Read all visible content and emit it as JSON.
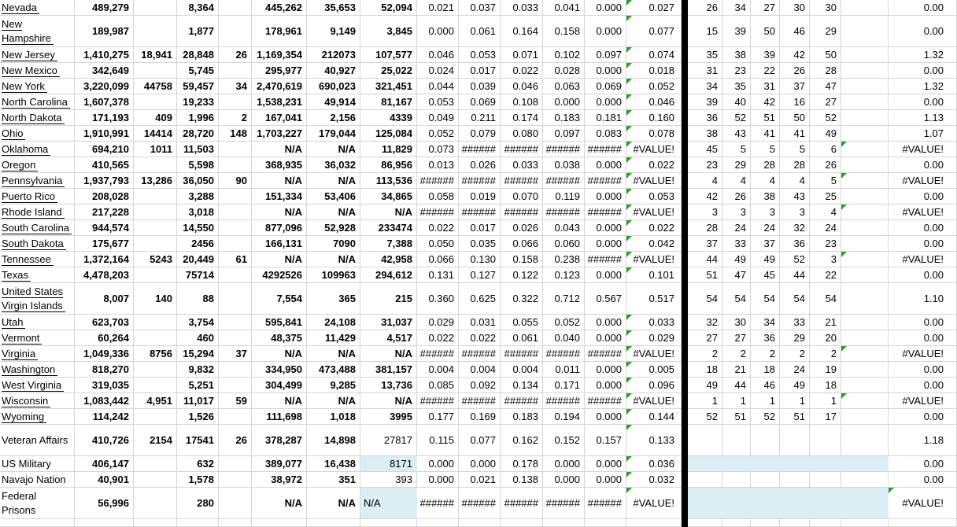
{
  "colors": {
    "gridline": "#d6d6d6",
    "error_indicator_green": "#2aa02a",
    "highlight_blue": "#daeef3",
    "section_divider_black": "#000000"
  },
  "table": {
    "rows": [
      {
        "label": "Nevada",
        "underline": true,
        "cells": [
          "489,279",
          "",
          "8,364",
          "",
          "445,262",
          "35,653",
          "52,094",
          "0.021",
          "0.037",
          "0.033",
          "0.041",
          "0.000",
          "0.027",
          "26",
          "34",
          "27",
          "30",
          "30",
          "0.00"
        ],
        "nTri": true
      },
      {
        "label": "New Hampshire",
        "underline": true,
        "tall": true,
        "cells": [
          "189,987",
          "",
          "1,877",
          "",
          "178,961",
          "9,149",
          "3,845",
          "0.000",
          "0.061",
          "0.164",
          "0.158",
          "0.000",
          "0.077",
          "15",
          "39",
          "50",
          "46",
          "29",
          "0.00"
        ],
        "nTri": true
      },
      {
        "label": "New Jersey",
        "underline": true,
        "cells": [
          "1,410,275",
          "18,941",
          "28,848",
          "26",
          "1,169,354",
          "212073",
          "107,577",
          "0.046",
          "0.053",
          "0.071",
          "0.102",
          "0.097",
          "0.074",
          "35",
          "38",
          "39",
          "42",
          "50",
          "1.32"
        ],
        "nTri": true
      },
      {
        "label": "New Mexico",
        "underline": true,
        "cells": [
          "342,649",
          "",
          "5,745",
          "",
          "295,977",
          "40,927",
          "25,022",
          "0.024",
          "0.017",
          "0.022",
          "0.028",
          "0.000",
          "0.018",
          "31",
          "23",
          "22",
          "26",
          "28",
          "0.00"
        ],
        "nTri": true
      },
      {
        "label": "New York",
        "underline": true,
        "cells": [
          "3,220,099",
          "44758",
          "59,457",
          "34",
          "2,470,619",
          "690,023",
          "321,451",
          "0.044",
          "0.039",
          "0.046",
          "0.063",
          "0.069",
          "0.052",
          "34",
          "35",
          "31",
          "37",
          "47",
          "1.32"
        ],
        "nTri": true
      },
      {
        "label": "North Carolina",
        "underline": true,
        "cells": [
          "1,607,378",
          "",
          "19,233",
          "",
          "1,538,231",
          "49,914",
          "81,167",
          "0.053",
          "0.069",
          "0.108",
          "0.000",
          "0.000",
          "0.046",
          "39",
          "40",
          "42",
          "16",
          "27",
          "0.00"
        ],
        "nTri": true
      },
      {
        "label": "North Dakota",
        "underline": true,
        "cells": [
          "171,193",
          "409",
          "1,996",
          "2",
          "167,041",
          "2,156",
          "4339",
          "0.049",
          "0.211",
          "0.174",
          "0.183",
          "0.181",
          "0.160",
          "36",
          "52",
          "51",
          "50",
          "52",
          "1.13"
        ],
        "nTri": true
      },
      {
        "label": "Ohio",
        "underline": true,
        "cells": [
          "1,910,991",
          "14414",
          "28,720",
          "148",
          "1,703,227",
          "179,044",
          "125,084",
          "0.052",
          "0.079",
          "0.080",
          "0.097",
          "0.083",
          "0.078",
          "38",
          "43",
          "41",
          "41",
          "49",
          "1.07"
        ],
        "nTri": true
      },
      {
        "label": "Oklahoma",
        "underline": true,
        "cells": [
          "694,210",
          "1011",
          "11,503",
          "",
          "N/A",
          "N/A",
          "11,829",
          "0.073",
          "######",
          "######",
          "######",
          "######",
          "#VALUE!",
          "45",
          "5",
          "5",
          "5",
          "6",
          "#VALUE!"
        ],
        "nTri": true,
        "tTri": true
      },
      {
        "label": "Oregon",
        "underline": true,
        "cells": [
          "410,565",
          "",
          "5,598",
          "",
          "368,935",
          "36,032",
          "86,956",
          "0.013",
          "0.026",
          "0.033",
          "0.038",
          "0.000",
          "0.022",
          "23",
          "29",
          "28",
          "28",
          "26",
          "0.00"
        ],
        "nTri": true
      },
      {
        "label": "Pennsylvania",
        "underline": true,
        "cells": [
          "1,937,793",
          "13,286",
          "36,050",
          "90",
          "N/A",
          "N/A",
          "113,536",
          "######",
          "######",
          "######",
          "######",
          "######",
          "#VALUE!",
          "4",
          "4",
          "4",
          "4",
          "5",
          "#VALUE!"
        ],
        "nTri": true,
        "tTri": true
      },
      {
        "label": "Puerto Rico",
        "underline": true,
        "cells": [
          "208,028",
          "",
          "3,288",
          "",
          "151,334",
          "53,406",
          "34,865",
          "0.058",
          "0.019",
          "0.070",
          "0.119",
          "0.000",
          "0.053",
          "42",
          "26",
          "38",
          "43",
          "25",
          "0.00"
        ],
        "nTri": true
      },
      {
        "label": "Rhode Island",
        "underline": true,
        "cells": [
          "217,228",
          "",
          "3,018",
          "",
          "N/A",
          "N/A",
          "N/A",
          "######",
          "######",
          "######",
          "######",
          "######",
          "#VALUE!",
          "3",
          "3",
          "3",
          "3",
          "4",
          "#VALUE!"
        ],
        "nTri": true,
        "tTri": true
      },
      {
        "label": "South Carolina",
        "underline": true,
        "cells": [
          "944,574",
          "",
          "14,550",
          "",
          "877,096",
          "52,928",
          "233474",
          "0.022",
          "0.017",
          "0.026",
          "0.043",
          "0.000",
          "0.022",
          "28",
          "24",
          "24",
          "32",
          "24",
          "0.00"
        ],
        "nTri": true
      },
      {
        "label": "South Dakota",
        "underline": true,
        "cells": [
          "175,677",
          "",
          "2456",
          "",
          "166,131",
          "7090",
          "7,388",
          "0.050",
          "0.035",
          "0.066",
          "0.060",
          "0.000",
          "0.042",
          "37",
          "33",
          "37",
          "36",
          "23",
          "0.00"
        ],
        "nTri": true
      },
      {
        "label": "Tennessee",
        "underline": true,
        "cells": [
          "1,372,164",
          "5243",
          "20,449",
          "61",
          "N/A",
          "N/A",
          "42,958",
          "0.066",
          "0.130",
          "0.158",
          "0.238",
          "######",
          "#VALUE!",
          "44",
          "49",
          "49",
          "52",
          "3",
          "#VALUE!"
        ],
        "nTri": true,
        "tTri": true
      },
      {
        "label": "Texas",
        "underline": true,
        "cells": [
          "4,478,203",
          "",
          "75714",
          "",
          "4292526",
          "109963",
          "294,612",
          "0.131",
          "0.127",
          "0.122",
          "0.123",
          "0.000",
          "0.101",
          "51",
          "47",
          "45",
          "44",
          "22",
          "0.00"
        ],
        "nTri": true
      },
      {
        "label": "United States Virgin Islands",
        "underline": true,
        "tall": true,
        "cells": [
          "8,007",
          "140",
          "88",
          "",
          "7,554",
          "365",
          "215",
          "0.360",
          "0.625",
          "0.322",
          "0.712",
          "0.567",
          "0.517",
          "54",
          "54",
          "54",
          "54",
          "54",
          "1.10"
        ]
      },
      {
        "label": "Utah",
        "underline": true,
        "cells": [
          "623,703",
          "",
          "3,754",
          "",
          "595,841",
          "24,108",
          "31,037",
          "0.029",
          "0.031",
          "0.055",
          "0.052",
          "0.000",
          "0.033",
          "32",
          "30",
          "34",
          "33",
          "21",
          "0.00"
        ],
        "nTri": true
      },
      {
        "label": "Vermont",
        "underline": true,
        "cells": [
          "60,264",
          "",
          "460",
          "",
          "48,375",
          "11,429",
          "4,517",
          "0.022",
          "0.022",
          "0.061",
          "0.040",
          "0.000",
          "0.029",
          "27",
          "27",
          "36",
          "29",
          "20",
          "0.00"
        ],
        "nTri": true
      },
      {
        "label": "Virginia",
        "underline": true,
        "cells": [
          "1,049,336",
          "8756",
          "15,294",
          "37",
          "N/A",
          "N/A",
          "N/A",
          "######",
          "######",
          "######",
          "######",
          "######",
          "#VALUE!",
          "2",
          "2",
          "2",
          "2",
          "2",
          "#VALUE!"
        ],
        "nTri": true,
        "tTri": true
      },
      {
        "label": "Washington",
        "underline": true,
        "cells": [
          "818,270",
          "",
          "9,832",
          "",
          "334,950",
          "473,488",
          "381,157",
          "0.004",
          "0.004",
          "0.004",
          "0.011",
          "0.000",
          "0.005",
          "18",
          "21",
          "18",
          "24",
          "19",
          "0.00"
        ],
        "nTri": true
      },
      {
        "label": "West Virginia",
        "underline": true,
        "cells": [
          "319,035",
          "",
          "5,251",
          "",
          "304,499",
          "9,285",
          "13,736",
          "0.085",
          "0.092",
          "0.134",
          "0.171",
          "0.000",
          "0.096",
          "49",
          "44",
          "46",
          "49",
          "18",
          "0.00"
        ],
        "nTri": true
      },
      {
        "label": "Wisconsin",
        "underline": true,
        "cells": [
          "1,083,442",
          "4,951",
          "11,017",
          "59",
          "N/A",
          "N/A",
          "N/A",
          "######",
          "######",
          "######",
          "######",
          "######",
          "#VALUE!",
          "1",
          "1",
          "1",
          "1",
          "1",
          "#VALUE!"
        ],
        "nTri": true,
        "tTri": true
      },
      {
        "label": "Wyoming",
        "underline": true,
        "cells": [
          "114,242",
          "",
          "1,526",
          "",
          "111,698",
          "1,018",
          "3995",
          "0.177",
          "0.169",
          "0.183",
          "0.194",
          "0.000",
          "0.144",
          "52",
          "51",
          "52",
          "51",
          "17",
          "0.00"
        ],
        "nTri": true
      },
      {
        "label": "Veteran Affairs",
        "tall": true,
        "cells": [
          "410,726",
          "2154",
          "17541",
          "26",
          "378,287",
          "14,898",
          "27817",
          "0.115",
          "0.077",
          "0.162",
          "0.152",
          "0.157",
          "0.133",
          "",
          "",
          "",
          "",
          "",
          "1.18"
        ],
        "nTri": true,
        "hPlain": true
      },
      {
        "label": "US Military",
        "cells": [
          "406,147",
          "",
          "632",
          "",
          "389,077",
          "16,438",
          "8171",
          "0.000",
          "0.000",
          "0.178",
          "0.000",
          "0.000",
          "0.036",
          "",
          "",
          "",
          "",
          "",
          "0.00"
        ],
        "nTri": true,
        "hPlain": true,
        "hBlue": true,
        "rBlue": true
      },
      {
        "label": "Navajo Nation",
        "cells": [
          "40,901",
          "",
          "1,578",
          "",
          "38,972",
          "351",
          "393",
          "0.000",
          "0.021",
          "0.138",
          "0.000",
          "0.000",
          "0.032",
          "",
          "",
          "",
          "",
          "",
          "0.00"
        ],
        "nTri": true,
        "hPlain": true
      },
      {
        "label": "Federal Prisons",
        "tall": true,
        "cells": [
          "56,996",
          "",
          "280",
          "",
          "N/A",
          "N/A",
          "N/A",
          "######",
          "######",
          "######",
          "######",
          "######",
          "#VALUE!",
          "",
          "",
          "",
          "",
          "",
          "#VALUE!"
        ],
        "nTri": true,
        "hPlain": true,
        "hLeft": true,
        "hBlue": true,
        "rBlue": true,
        "uTri": true
      }
    ]
  }
}
